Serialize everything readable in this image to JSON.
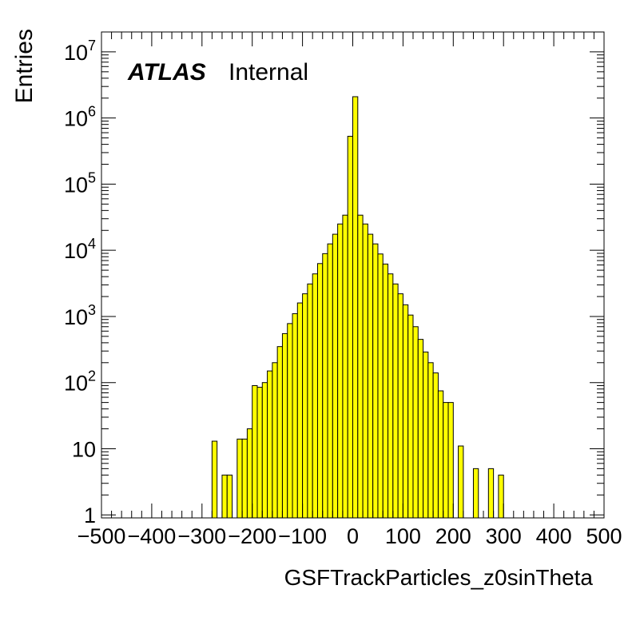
{
  "chart_data": {
    "type": "bar",
    "title": "",
    "xlabel": "GSFTrackParticles_z0sinTheta",
    "ylabel": "Entries",
    "label_atlas": "ATLAS",
    "label_status": "Internal",
    "xlim": [
      -500,
      500
    ],
    "ylim": [
      0.9,
      20000000
    ],
    "log_y": true,
    "bin_width": 10,
    "fill_color": "#ffff00",
    "line_color": "#000000",
    "x_ticks": [
      "−500",
      "−400",
      "−300",
      "−200",
      "−100",
      "0",
      "100",
      "200",
      "300",
      "400",
      "500"
    ],
    "y_ticks": [
      {
        "base": "1",
        "exp": ""
      },
      {
        "base": "10",
        "exp": ""
      },
      {
        "base": "10",
        "exp": "2"
      },
      {
        "base": "10",
        "exp": "3"
      },
      {
        "base": "10",
        "exp": "4"
      },
      {
        "base": "10",
        "exp": "5"
      },
      {
        "base": "10",
        "exp": "6"
      },
      {
        "base": "10",
        "exp": "7"
      }
    ],
    "bins": [
      {
        "x0": -280,
        "value": 13
      },
      {
        "x0": -260,
        "value": 4
      },
      {
        "x0": -250,
        "value": 4
      },
      {
        "x0": -230,
        "value": 14
      },
      {
        "x0": -220,
        "value": 14
      },
      {
        "x0": -210,
        "value": 20
      },
      {
        "x0": -200,
        "value": 90
      },
      {
        "x0": -190,
        "value": 85
      },
      {
        "x0": -180,
        "value": 100
      },
      {
        "x0": -170,
        "value": 150
      },
      {
        "x0": -160,
        "value": 200
      },
      {
        "x0": -150,
        "value": 350
      },
      {
        "x0": -140,
        "value": 550
      },
      {
        "x0": -130,
        "value": 780
      },
      {
        "x0": -120,
        "value": 1100
      },
      {
        "x0": -110,
        "value": 1600
      },
      {
        "x0": -100,
        "value": 2200
      },
      {
        "x0": -90,
        "value": 3100
      },
      {
        "x0": -80,
        "value": 4400
      },
      {
        "x0": -70,
        "value": 6300
      },
      {
        "x0": -60,
        "value": 8900
      },
      {
        "x0": -50,
        "value": 12500
      },
      {
        "x0": -40,
        "value": 17500
      },
      {
        "x0": -30,
        "value": 25000
      },
      {
        "x0": -20,
        "value": 34000
      },
      {
        "x0": -10,
        "value": 530000
      },
      {
        "x0": 0,
        "value": 2100000
      },
      {
        "x0": 10,
        "value": 34000
      },
      {
        "x0": 20,
        "value": 25000
      },
      {
        "x0": 30,
        "value": 17500
      },
      {
        "x0": 40,
        "value": 12500
      },
      {
        "x0": 50,
        "value": 8800
      },
      {
        "x0": 60,
        "value": 6200
      },
      {
        "x0": 70,
        "value": 4400
      },
      {
        "x0": 80,
        "value": 3100
      },
      {
        "x0": 90,
        "value": 2200
      },
      {
        "x0": 100,
        "value": 1500
      },
      {
        "x0": 110,
        "value": 1050
      },
      {
        "x0": 120,
        "value": 700
      },
      {
        "x0": 130,
        "value": 450
      },
      {
        "x0": 140,
        "value": 290
      },
      {
        "x0": 150,
        "value": 200
      },
      {
        "x0": 160,
        "value": 140
      },
      {
        "x0": 170,
        "value": 75
      },
      {
        "x0": 180,
        "value": 50
      },
      {
        "x0": 190,
        "value": 50
      },
      {
        "x0": 210,
        "value": 11
      },
      {
        "x0": 240,
        "value": 5
      },
      {
        "x0": 270,
        "value": 5
      },
      {
        "x0": 290,
        "value": 4
      }
    ]
  }
}
